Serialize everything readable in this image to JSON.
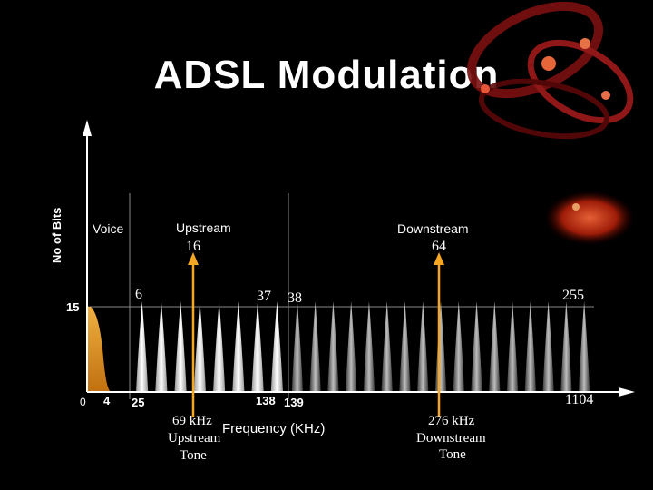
{
  "title": "ADSL Modulation",
  "y_axis_label": "No of Bits",
  "bands": {
    "voice": "Voice",
    "upstream": "Upstream",
    "downstream": "Downstream"
  },
  "y_level_label": "15",
  "tone_numbers": {
    "t6": "6",
    "t16": "16",
    "t37": "37",
    "t38": "38",
    "t64": "64",
    "t255": "255"
  },
  "x_ticks": {
    "x0": "0",
    "x4": "4",
    "x25": "25",
    "x138": "138",
    "x139": "139",
    "x1104": "1104"
  },
  "x_axis_label": "Frequency (KHz)",
  "upstream_tone_lines": [
    "69 kHz",
    "Upstream",
    "Tone"
  ],
  "downstream_tone_lines": [
    "276 kHz",
    "Downstream",
    "Tone"
  ],
  "colors": {
    "axis": "#ffffff",
    "marker": "#f5a623",
    "voice_fill": "#e8a030",
    "upstream_carrier": "#ffffff",
    "downstream_carrier": "#a0a0a0",
    "gridline": "#888888",
    "background": "#000000"
  },
  "carriers": {
    "upstream_count": 8,
    "downstream_count": 17
  }
}
